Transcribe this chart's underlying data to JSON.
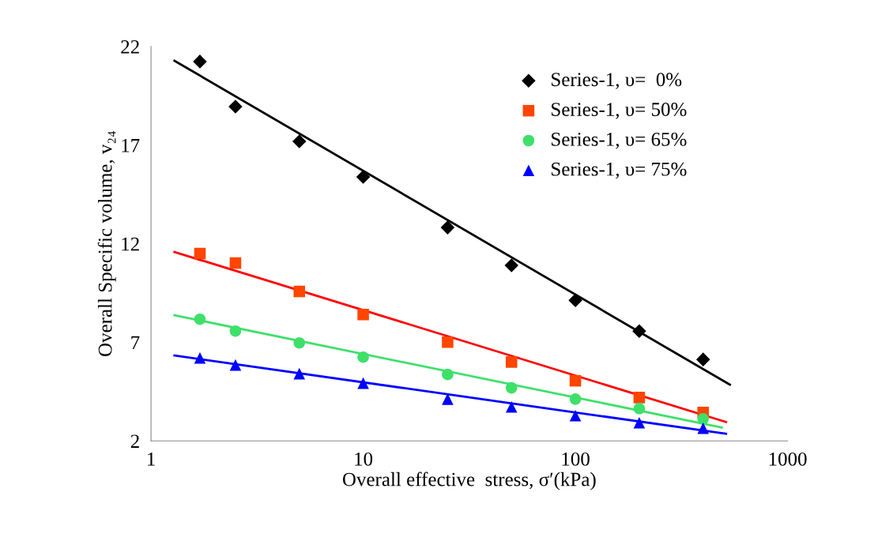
{
  "chart_data": {
    "type": "scatter",
    "xlabel": "Overall effective  stress, σ′(kPa)",
    "ylabel": "Overall Specific volume, v₂₄",
    "log": "x",
    "xlim": [
      1,
      1000
    ],
    "xticks": [
      1,
      10,
      100,
      1000
    ],
    "ylim": [
      2,
      22
    ],
    "yticks": [
      2,
      7,
      12,
      17,
      22
    ],
    "grid": false,
    "legend": "top right",
    "series": [
      {
        "name": "Series-1, υ=  0%",
        "color": "#000000",
        "marker": "diamond",
        "x": [
          1.7,
          2.5,
          5,
          10,
          25,
          50,
          100,
          200,
          400
        ],
        "values": [
          21.24,
          18.95,
          17.19,
          15.39,
          12.82,
          10.9,
          9.13,
          7.57,
          6.13
        ]
      },
      {
        "name": "Series-1, υ= 50%",
        "color": "#ff4500",
        "marker": "square",
        "x": [
          1.7,
          2.5,
          5,
          10,
          25,
          50,
          100,
          200,
          400
        ],
        "values": [
          11.5,
          11.02,
          9.58,
          8.41,
          7.01,
          6.0,
          5.05,
          4.2,
          3.44
        ]
      },
      {
        "name": "Series-1, υ= 65%",
        "color": "#3ee06a",
        "marker": "circle",
        "x": [
          1.7,
          2.5,
          5,
          10,
          25,
          50,
          100,
          200,
          400
        ],
        "values": [
          8.17,
          7.57,
          6.97,
          6.25,
          5.37,
          4.69,
          4.12,
          3.64,
          3.12
        ]
      },
      {
        "name": "Series-1, υ= 75%",
        "color": "#0000ff",
        "marker": "triangle",
        "x": [
          1.7,
          2.5,
          5,
          10,
          25,
          50,
          100,
          200,
          400
        ],
        "values": [
          6.21,
          5.85,
          5.41,
          4.93,
          4.12,
          3.72,
          3.28,
          2.92,
          2.64
        ]
      },
      {
        "type": "line",
        "color": "#000000",
        "marker": "none",
        "x": [
          1.29,
          535
        ],
        "values": [
          21.28,
          4.85
        ]
      },
      {
        "type": "line",
        "color": "#ff0000",
        "marker": "none",
        "x": [
          1.29,
          513
        ],
        "values": [
          11.58,
          2.96
        ]
      },
      {
        "type": "line",
        "color": "#3ee06a",
        "marker": "none",
        "x": [
          1.29,
          490
        ],
        "values": [
          8.37,
          2.68
        ]
      },
      {
        "type": "line",
        "color": "#0000ff",
        "marker": "none",
        "x": [
          1.29,
          513
        ],
        "values": [
          6.33,
          2.36
        ]
      }
    ]
  }
}
